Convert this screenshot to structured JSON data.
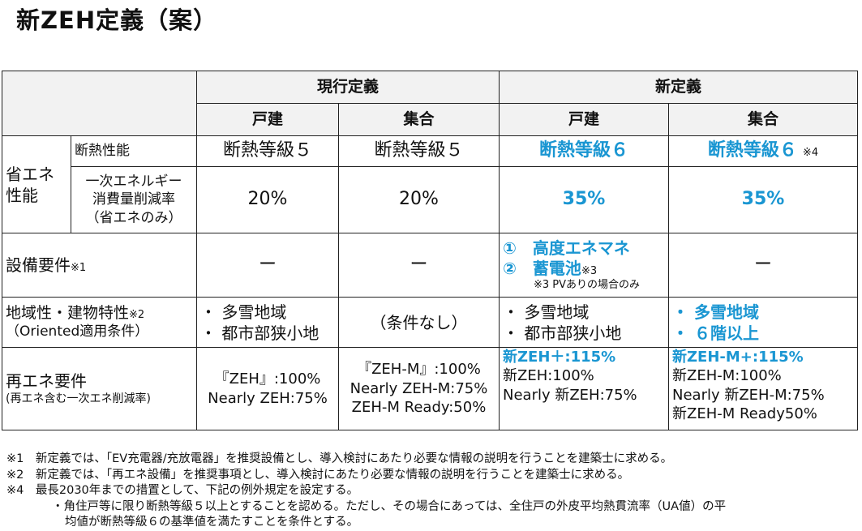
{
  "title": "新ZEH定義（案）",
  "header": {
    "current": "現行定義",
    "new": "新定義",
    "detached": "戸建",
    "collective": "集合"
  },
  "rows": {
    "energy_group": "省エネ性能",
    "insulation": {
      "label": "断熱性能",
      "cur_d": "断熱等級５",
      "cur_c": "断熱等級５",
      "new_d": "断熱等級６",
      "new_c": "断熱等級６",
      "new_c_note": "※4"
    },
    "primary": {
      "label": [
        "一次エネルギー",
        "消費量削減率",
        "（省エネのみ）"
      ],
      "cur_d": "20%",
      "cur_c": "20%",
      "new_d": "35%",
      "new_c": "35%"
    },
    "equipment": {
      "label": "設備要件",
      "note": "※1",
      "cur_d": "ー",
      "cur_c": "ー",
      "new_d": [
        "①　高度エネマネ",
        "②　蓄電池"
      ],
      "new_d_note": "※3",
      "new_d_sub": "※3 PVありの場合のみ",
      "new_c": "ー"
    },
    "region": {
      "label": "地域性・建物特性",
      "note": "※2",
      "sub": "（Oriented適用条件）",
      "cur_d": [
        "・ 多雪地域",
        "・ 都市部狭小地"
      ],
      "cur_c": "（条件なし）",
      "new_d": [
        "・ 多雪地域",
        "・ 都市部狭小地"
      ],
      "new_c": [
        "・ 多雪地域",
        "・ ６階以上"
      ]
    },
    "renewable": {
      "label": "再エネ要件",
      "sub": "(再エネ含む一次エネ削減率)",
      "cur_d": [
        "『ZEH』:100%",
        "Nearly ZEH:75%"
      ],
      "cur_c": [
        "『ZEH-M』:100%",
        "Nearly ZEH-M:75%",
        "ZEH-M Ready:50%"
      ],
      "new_d": [
        "新ZEH＋:115%",
        "新ZEH:100%",
        "Nearly 新ZEH:75%"
      ],
      "new_c": [
        "新ZEH-M+:115%",
        "新ZEH-M:100%",
        "Nearly 新ZEH-M:75%",
        "新ZEH-M Ready50%"
      ]
    }
  },
  "notes": [
    "※1　新定義では、「EV充電器/充放電器」を推奨設備とし、導入検討にあたり必要な情報の説明を行うことを建築士に求める。",
    "※2　新定義では、「再エネ設備」を推奨事項とし、導入検討にあたり必要な情報の説明を行うことを建築士に求める。",
    "※4　最長2030年までの措置として、下記の例外規定を設定する。",
    "・角住戸等に限り断熱等級５以上とすることを認める。ただし、その場合にあっては、全住戸の外皮平均熱貫流率（UA値）の平",
    "均値が断熱等級６の基準値を満たすことを条件とする。"
  ],
  "colors": {
    "blue": "#1a96d2",
    "header_bg": "#f2f2f2"
  }
}
